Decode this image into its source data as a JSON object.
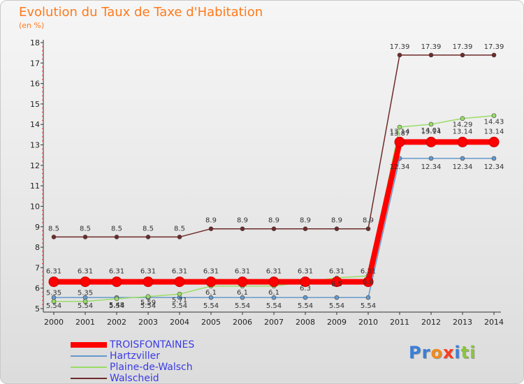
{
  "title": "Evolution du Taux de Taxe d'Habitation",
  "unit": "(en %)",
  "logo": [
    "P",
    "r",
    "o",
    "x",
    "i",
    "t",
    "i"
  ],
  "colors": {
    "title": "#ff7a1a",
    "legend_text": "#3a3ae6",
    "troisfontaines": "#ff0000",
    "hartzviller": "#6699cc",
    "plaine_de_walsch": "#99dd66",
    "walscheid": "#6e2a2a",
    "logo": [
      "#3b7fd8",
      "#3b7fd8",
      "#f08a1c",
      "#ff3b1e",
      "#3b7fd8",
      "#8bc43f",
      "#8bc43f"
    ]
  },
  "chart_data": {
    "type": "line",
    "x": [
      "2000",
      "2001",
      "2002",
      "2003",
      "2004",
      "2005",
      "2006",
      "2007",
      "2008",
      "2009",
      "2010",
      "2011",
      "2012",
      "2013",
      "2014"
    ],
    "ylim": [
      5,
      18
    ],
    "yticks": [
      5,
      6,
      7,
      8,
      9,
      10,
      11,
      12,
      13,
      14,
      15,
      16,
      17,
      18
    ],
    "grid": false,
    "legend_position": "bottom-left",
    "series": [
      {
        "name": "TROISFONTAINES",
        "color": "#ff0000",
        "values": [
          6.31,
          6.31,
          6.31,
          6.31,
          6.31,
          6.31,
          6.31,
          6.31,
          6.31,
          6.31,
          6.31,
          13.14,
          13.14,
          13.14,
          13.14
        ],
        "labels": [
          "6.31",
          "6.31",
          "6.31",
          "6.31",
          "6.31",
          "6.31",
          "6.31",
          "6.31",
          "6.31",
          "6.31",
          "6.31",
          "13.14",
          "13.14",
          "13.14",
          "13.14"
        ]
      },
      {
        "name": "Hartzviller",
        "color": "#6699cc",
        "values": [
          5.54,
          5.54,
          5.54,
          5.54,
          5.54,
          5.54,
          5.54,
          5.54,
          5.54,
          5.54,
          5.54,
          12.34,
          12.34,
          12.34,
          12.34
        ],
        "labels": [
          "5.54",
          "5.54",
          "5.54",
          "5.54",
          "5.54",
          "5.54",
          "5.54",
          "5.54",
          "5.54",
          "5.54",
          "5.54",
          "12.34",
          "12.34",
          "12.34",
          "12.34"
        ]
      },
      {
        "name": "Plaine-de-Walsch",
        "color": "#99dd66",
        "values": [
          5.35,
          5.35,
          5.48,
          5.59,
          5.71,
          6.1,
          6.1,
          6.1,
          6.3,
          6.5,
          6.6,
          13.87,
          14.01,
          14.29,
          14.43
        ],
        "labels": [
          "5.35",
          "5.35",
          "5.48",
          "5.59",
          "5.71",
          "6.1",
          "6.1",
          "6.1",
          "6.3",
          "6.5",
          "6.6",
          "13.87",
          "14.01",
          "14.29",
          "14.43"
        ]
      },
      {
        "name": "Walscheid",
        "color": "#6e2a2a",
        "values": [
          8.5,
          8.5,
          8.5,
          8.5,
          8.5,
          8.9,
          8.9,
          8.9,
          8.9,
          8.9,
          8.9,
          17.39,
          17.39,
          17.39,
          17.39
        ],
        "labels": [
          "8.5",
          "8.5",
          "8.5",
          "8.5",
          "8.5",
          "8.9",
          "8.9",
          "8.9",
          "8.9",
          "8.9",
          "8.9",
          "17.39",
          "17.39",
          "17.39",
          "17.39"
        ]
      }
    ]
  }
}
